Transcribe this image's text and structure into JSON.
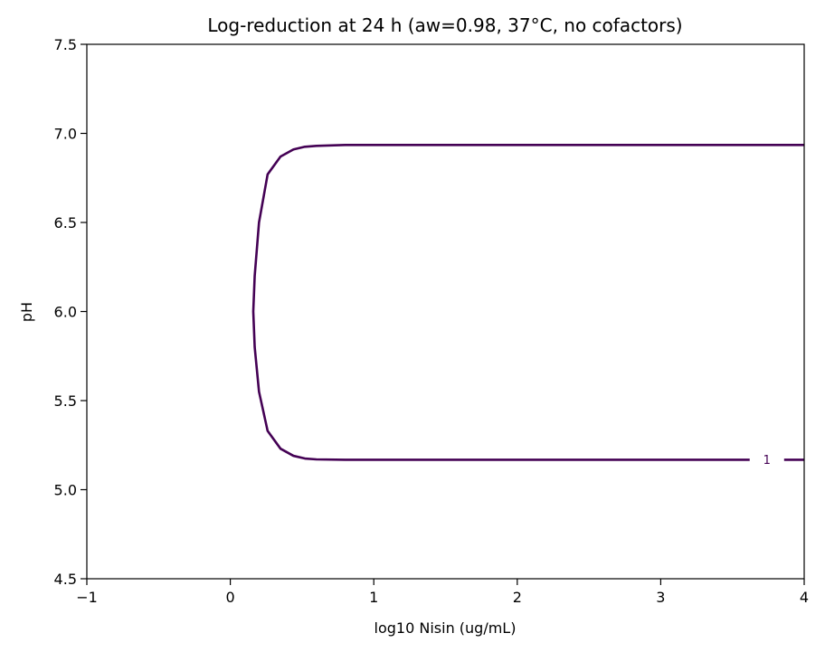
{
  "chart_data": {
    "type": "contour",
    "title": "Log-reduction at 24 h (aw=0.98, 37°C, no cofactors)",
    "xlabel": "log10 Nisin (ug/mL)",
    "ylabel": "pH",
    "xlim": [
      -1,
      4
    ],
    "ylim": [
      4.5,
      7.5
    ],
    "xticks": [
      -1,
      0,
      1,
      2,
      3,
      4
    ],
    "xtick_labels": [
      "−1",
      "0",
      "1",
      "2",
      "3",
      "4"
    ],
    "yticks": [
      4.5,
      5.0,
      5.5,
      6.0,
      6.5,
      7.0,
      7.5
    ],
    "ytick_labels": [
      "4.5",
      "5.0",
      "5.5",
      "6.0",
      "6.5",
      "7.0",
      "7.5"
    ],
    "grid": false,
    "series": [
      {
        "level": 1,
        "label": "1",
        "color": "#440154",
        "label_at": [
          3.74,
          5.17
        ],
        "points": [
          [
            4.0,
            6.935
          ],
          [
            2.0,
            6.935
          ],
          [
            0.8,
            6.935
          ],
          [
            0.6,
            6.93
          ],
          [
            0.52,
            6.925
          ],
          [
            0.44,
            6.91
          ],
          [
            0.35,
            6.87
          ],
          [
            0.26,
            6.77
          ],
          [
            0.2,
            6.5
          ],
          [
            0.17,
            6.2
          ],
          [
            0.16,
            6.0
          ],
          [
            0.17,
            5.8
          ],
          [
            0.2,
            5.55
          ],
          [
            0.26,
            5.33
          ],
          [
            0.35,
            5.23
          ],
          [
            0.44,
            5.19
          ],
          [
            0.52,
            5.175
          ],
          [
            0.6,
            5.17
          ],
          [
            0.8,
            5.168
          ],
          [
            2.0,
            5.168
          ],
          [
            3.62,
            5.168
          ]
        ],
        "tail": [
          [
            3.86,
            5.168
          ],
          [
            4.0,
            5.168
          ]
        ]
      }
    ]
  }
}
